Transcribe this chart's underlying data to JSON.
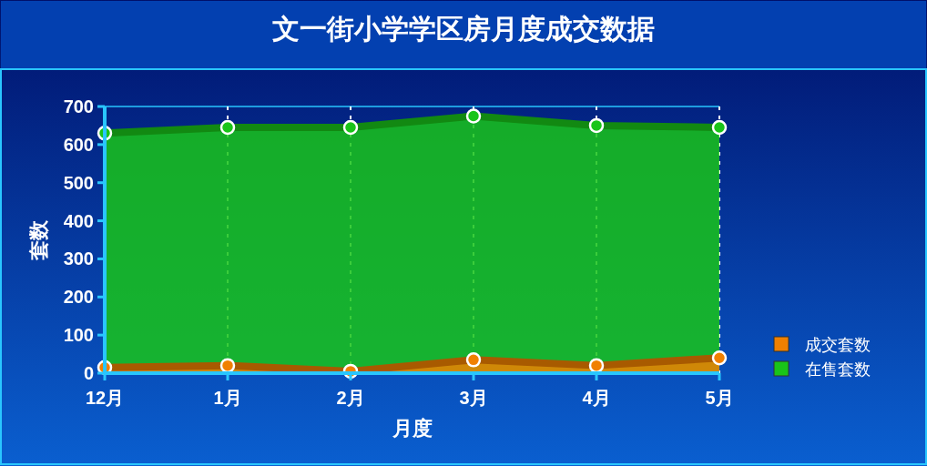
{
  "chart_data": {
    "type": "area",
    "title": "文一街小学学区房月度成交数据",
    "xlabel": "月度",
    "ylabel": "套数",
    "categories": [
      "12月",
      "1月",
      "2月",
      "3月",
      "4月",
      "5月"
    ],
    "series": [
      {
        "name": "在售套数",
        "color": "#19c419",
        "values": [
          630,
          645,
          645,
          675,
          650,
          645
        ]
      },
      {
        "name": "成交套数",
        "color": "#f08000",
        "values": [
          15,
          20,
          5,
          35,
          20,
          40
        ]
      }
    ],
    "ylim": [
      0,
      700
    ],
    "yticks": [
      0,
      100,
      200,
      300,
      400,
      500,
      600,
      700
    ],
    "grid": "x",
    "legend": "right",
    "marker": "circle"
  }
}
